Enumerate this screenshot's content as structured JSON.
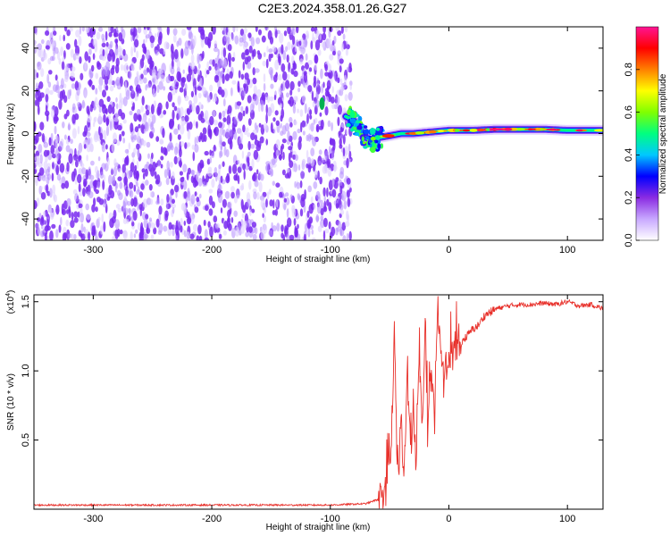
{
  "title": "C2E3.2024.358.01.26.G27",
  "chart_data": [
    {
      "type": "heatmap",
      "xlabel": "Height of straight line (km)",
      "ylabel": "Frequency (Hz)",
      "xlim": [
        -350,
        130
      ],
      "ylim": [
        -50,
        50
      ],
      "xticks": [
        -300,
        -200,
        -100,
        0,
        100
      ],
      "xtick_labels": [
        "-300",
        "-200",
        "-100",
        "0",
        "100"
      ],
      "yticks": [
        -40,
        -20,
        0,
        20,
        40
      ],
      "ytick_labels": [
        "-40",
        "-20",
        "0",
        "20",
        "40"
      ],
      "noise_region_x": [
        -350,
        -87
      ],
      "signal_track": {
        "x": [
          -87,
          -80,
          -75,
          -70,
          -65,
          -60,
          -50,
          -40,
          -30,
          -20,
          -10,
          0,
          20,
          40,
          60,
          80,
          100,
          130
        ],
        "y": [
          8,
          6,
          2,
          -2,
          -3,
          -2,
          -1,
          0,
          0,
          0.5,
          1,
          1.5,
          1.5,
          2,
          2,
          2,
          1.5,
          1.5
        ]
      },
      "colorbar": {
        "label": "Normalized spectral amplitude",
        "range": [
          0,
          1
        ],
        "ticks": [
          0.0,
          0.2,
          0.4,
          0.6,
          0.8
        ],
        "tick_labels": [
          "0.0",
          "0.2",
          "0.4",
          "0.6",
          "0.8"
        ],
        "colors": [
          "#ffffff",
          "#c8a8ff",
          "#8a2be2",
          "#0000ff",
          "#00c8ff",
          "#00ff80",
          "#80ff00",
          "#ffff00",
          "#ff8000",
          "#ff0000",
          "#ff1493"
        ]
      }
    },
    {
      "type": "line",
      "xlabel": "Height of straight line (km)",
      "ylabel": "SNR (10 * v/v)",
      "scale_label": "(x10",
      "scale_exp": "4",
      "scale_close": ")",
      "xlim": [
        -350,
        130
      ],
      "ylim": [
        0,
        1.55
      ],
      "xticks": [
        -300,
        -200,
        -100,
        0,
        100
      ],
      "xtick_labels": [
        "-300",
        "-200",
        "-100",
        "0",
        "100"
      ],
      "yticks": [
        0.5,
        1.0,
        1.5
      ],
      "ytick_labels": [
        "0.5",
        "1.0",
        "1.5"
      ],
      "color": "#e8302a",
      "series": [
        {
          "x": [
            -350,
            -300,
            -250,
            -200,
            -150,
            -100,
            -70,
            -60,
            -55,
            -52,
            -50,
            -48,
            -46,
            -44,
            -42,
            -40,
            -38,
            -35,
            -32,
            -30,
            -28,
            -25,
            -22,
            -20,
            -18,
            -15,
            -12,
            -10,
            -5,
            0,
            5,
            10,
            15,
            20,
            25,
            30,
            40,
            50,
            60,
            70,
            80,
            90,
            100,
            110,
            120,
            130
          ],
          "y": [
            0.03,
            0.03,
            0.03,
            0.03,
            0.03,
            0.03,
            0.04,
            0.07,
            0.12,
            0.22,
            0.35,
            0.45,
            1.32,
            0.5,
            0.3,
            0.62,
            0.25,
            0.95,
            0.4,
            0.7,
            0.35,
            1.05,
            0.6,
            1.46,
            0.55,
            1.0,
            0.7,
            1.4,
            0.95,
            1.1,
            1.15,
            1.2,
            1.25,
            1.3,
            1.33,
            1.4,
            1.45,
            1.47,
            1.48,
            1.48,
            1.49,
            1.48,
            1.5,
            1.47,
            1.48,
            1.45
          ]
        }
      ]
    }
  ]
}
